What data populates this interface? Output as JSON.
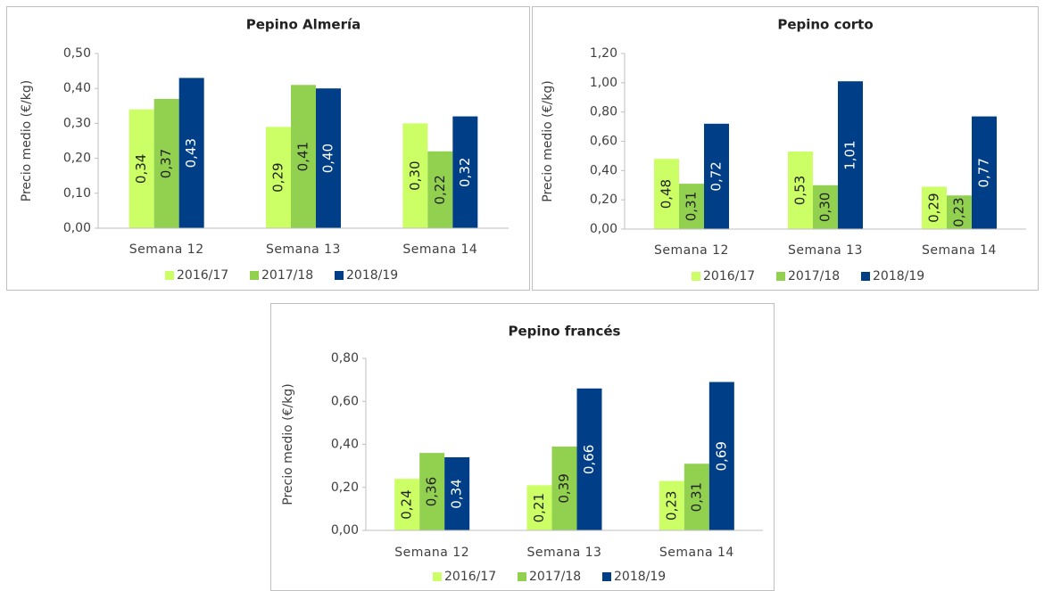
{
  "chart_data": [
    {
      "type": "bar",
      "title": "Pepino Almería",
      "y_label": "Precio medio (€/kg)",
      "categories": [
        "Semana 12",
        "Semana 13",
        "Semana 14"
      ],
      "series": [
        {
          "name": "2016/17",
          "color": "#ccff66",
          "values": [
            0.34,
            0.29,
            0.3
          ],
          "value_labels": [
            "0,34",
            "0,29",
            "0,30"
          ]
        },
        {
          "name": "2017/18",
          "color": "#92d050",
          "values": [
            0.37,
            0.41,
            0.22
          ],
          "value_labels": [
            "0,37",
            "0,41",
            "0,22"
          ]
        },
        {
          "name": "2018/19",
          "color": "#003f87",
          "values": [
            0.43,
            0.4,
            0.32
          ],
          "value_labels": [
            "0,43",
            "0,40",
            "0,32"
          ]
        }
      ],
      "ylim": [
        0,
        0.5
      ],
      "yticks": [
        {
          "value": 0,
          "label": "0,00"
        },
        {
          "value": 0.1,
          "label": "0,10"
        },
        {
          "value": 0.2,
          "label": "0,20"
        },
        {
          "value": 0.3,
          "label": "0,30"
        },
        {
          "value": 0.4,
          "label": "0,40"
        },
        {
          "value": 0.5,
          "label": "0,50"
        }
      ],
      "grid": false,
      "legend": "bottom"
    },
    {
      "type": "bar",
      "title": "Pepino corto",
      "y_label": "Precio medio (€/kg)",
      "categories": [
        "Semana 12",
        "Semana 13",
        "Semana 14"
      ],
      "series": [
        {
          "name": "2016/17",
          "color": "#ccff66",
          "values": [
            0.48,
            0.53,
            0.29
          ],
          "value_labels": [
            "0,48",
            "0,53",
            "0,29"
          ]
        },
        {
          "name": "2017/18",
          "color": "#92d050",
          "values": [
            0.31,
            0.3,
            0.23
          ],
          "value_labels": [
            "0,31",
            "0,30",
            "0,23"
          ]
        },
        {
          "name": "2018/19",
          "color": "#003f87",
          "values": [
            0.72,
            1.01,
            0.77
          ],
          "value_labels": [
            "0,72",
            "1,01",
            "0,77"
          ]
        }
      ],
      "ylim": [
        0,
        1.2
      ],
      "yticks": [
        {
          "value": 0,
          "label": "0,00"
        },
        {
          "value": 0.2,
          "label": "0,20"
        },
        {
          "value": 0.4,
          "label": "0,40"
        },
        {
          "value": 0.6,
          "label": "0,60"
        },
        {
          "value": 0.8,
          "label": "0,80"
        },
        {
          "value": 1.0,
          "label": "1,00"
        },
        {
          "value": 1.2,
          "label": "1,20"
        }
      ],
      "grid": false,
      "legend": "bottom"
    },
    {
      "type": "bar",
      "title": "Pepino francés",
      "y_label": "Precio medio (€/kg)",
      "categories": [
        "Semana 12",
        "Semana 13",
        "Semana 14"
      ],
      "series": [
        {
          "name": "2016/17",
          "color": "#ccff66",
          "values": [
            0.24,
            0.21,
            0.23
          ],
          "value_labels": [
            "0,24",
            "0,21",
            "0,23"
          ]
        },
        {
          "name": "2017/18",
          "color": "#92d050",
          "values": [
            0.36,
            0.39,
            0.31
          ],
          "value_labels": [
            "0,36",
            "0,39",
            "0,31"
          ]
        },
        {
          "name": "2018/19",
          "color": "#003f87",
          "values": [
            0.34,
            0.66,
            0.69
          ],
          "value_labels": [
            "0,34",
            "0,66",
            "0,69"
          ]
        }
      ],
      "ylim": [
        0,
        0.8
      ],
      "yticks": [
        {
          "value": 0,
          "label": "0,00"
        },
        {
          "value": 0.2,
          "label": "0,20"
        },
        {
          "value": 0.4,
          "label": "0,40"
        },
        {
          "value": 0.6,
          "label": "0,60"
        },
        {
          "value": 0.8,
          "label": "0,80"
        }
      ],
      "grid": false,
      "legend": "bottom"
    }
  ]
}
